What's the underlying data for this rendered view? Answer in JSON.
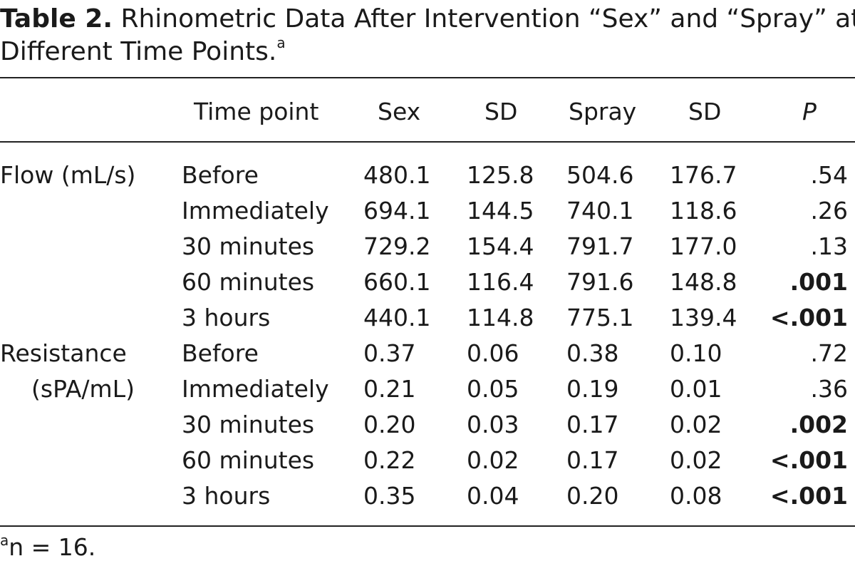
{
  "caption": {
    "label": "Table 2.",
    "line1": "Rhinometric Data After Intervention “Sex” and “Spray” at",
    "line2": "Different Time Points.",
    "note_marker": "a"
  },
  "headers": {
    "time_point": "Time point",
    "sex": "Sex",
    "sd1": "SD",
    "spray": "Spray",
    "sd2": "SD",
    "p": "P"
  },
  "groups": [
    {
      "label_line1": "Flow (mL/s)",
      "label_line2": "",
      "rows": [
        {
          "time": "Before",
          "sex": "480.1",
          "sd1": "125.8",
          "spray": "504.6",
          "sd2": "176.7",
          "p": ".54",
          "bold": false
        },
        {
          "time": "Immediately",
          "sex": "694.1",
          "sd1": "144.5",
          "spray": "740.1",
          "sd2": "118.6",
          "p": ".26",
          "bold": false
        },
        {
          "time": "30 minutes",
          "sex": "729.2",
          "sd1": "154.4",
          "spray": "791.7",
          "sd2": "177.0",
          "p": ".13",
          "bold": false
        },
        {
          "time": "60 minutes",
          "sex": "660.1",
          "sd1": "116.4",
          "spray": "791.6",
          "sd2": "148.8",
          "p": ".001",
          "bold": true
        },
        {
          "time": "3 hours",
          "sex": "440.1",
          "sd1": "114.8",
          "spray": "775.1",
          "sd2": "139.4",
          "p": "<.001",
          "bold": true
        }
      ]
    },
    {
      "label_line1": "Resistance",
      "label_line2": "(sPA/mL)",
      "rows": [
        {
          "time": "Before",
          "sex": "0.37",
          "sd1": "0.06",
          "spray": "0.38",
          "sd2": "0.10",
          "p": ".72",
          "bold": false
        },
        {
          "time": "Immediately",
          "sex": "0.21",
          "sd1": "0.05",
          "spray": "0.19",
          "sd2": "0.01",
          "p": ".36",
          "bold": false
        },
        {
          "time": "30 minutes",
          "sex": "0.20",
          "sd1": "0.03",
          "spray": "0.17",
          "sd2": "0.02",
          "p": ".002",
          "bold": true
        },
        {
          "time": "60 minutes",
          "sex": "0.22",
          "sd1": "0.02",
          "spray": "0.17",
          "sd2": "0.02",
          "p": "<.001",
          "bold": true
        },
        {
          "time": "3 hours",
          "sex": "0.35",
          "sd1": "0.04",
          "spray": "0.20",
          "sd2": "0.08",
          "p": "<.001",
          "bold": true
        }
      ]
    }
  ],
  "footnote": {
    "marker": "a",
    "text": "n = 16."
  }
}
